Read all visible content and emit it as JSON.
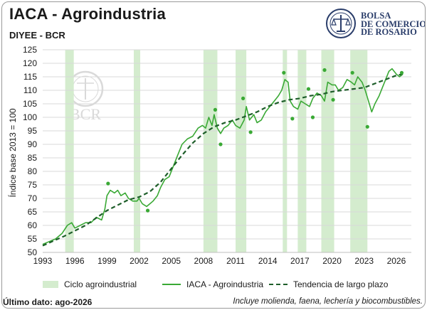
{
  "header": {
    "title": "IACA - Agroindustria",
    "subtitle": "DIYEE - BCR"
  },
  "logo": {
    "line1": "BOLSA",
    "line2": "DE COMERCIO",
    "line3": "DE ROSARIO",
    "color": "#2a3d6a",
    "icon": "bcr-seal-icon"
  },
  "watermark": {
    "text": "BCR"
  },
  "footer": {
    "last_data": "Último dato: ago-2026",
    "note": "Incluye molienda, faena, lechería y biocombustibles."
  },
  "colors": {
    "series": "#3aa935",
    "trend": "#1e5e2a",
    "band": "#d4ecce",
    "grid": "#d9d9d9"
  },
  "chart_data": {
    "type": "line",
    "title": "IACA - Agroindustria",
    "ylabel": "Índice base 2013 = 100",
    "xlabel": "",
    "ylim": [
      50,
      125
    ],
    "xlim": [
      1993,
      2027.4
    ],
    "xticks": [
      1993,
      1996,
      1999,
      2002,
      2005,
      2008,
      2011,
      2014,
      2017,
      2020,
      2023,
      2026
    ],
    "yticks": [
      50,
      55,
      60,
      65,
      70,
      75,
      80,
      85,
      90,
      95,
      100,
      105,
      110,
      115,
      120,
      125
    ],
    "grid": "horizontal",
    "legend": {
      "position": "bottom",
      "items": [
        "Ciclo agroindustrial",
        "IACA - Agroindustria",
        "Tendencia de largo plazo"
      ]
    },
    "bands": [
      [
        1995.1,
        1995.9
      ],
      [
        2001.5,
        2002.1
      ],
      [
        2008.0,
        2009.3
      ],
      [
        2011.0,
        2012.0
      ],
      [
        2015.4,
        2015.8
      ],
      [
        2016.8,
        2017.6
      ],
      [
        2019.0,
        2020.2
      ],
      [
        2021.7,
        2023.3
      ]
    ],
    "series": [
      {
        "name": "IACA - Agroindustria",
        "x": [
          1993.0,
          1993.6,
          1994.2,
          1994.8,
          1995.3,
          1995.7,
          1996.0,
          1996.5,
          1997.0,
          1997.5,
          1998.0,
          1998.5,
          1998.8,
          1999.0,
          1999.3,
          1999.7,
          2000.0,
          2000.3,
          2000.7,
          2001.0,
          2001.4,
          2001.8,
          2002.0,
          2002.3,
          2002.7,
          2003.0,
          2003.3,
          2003.7,
          2004.0,
          2004.4,
          2004.8,
          2005.2,
          2005.6,
          2006.0,
          2006.5,
          2007.0,
          2007.5,
          2007.9,
          2008.2,
          2008.5,
          2008.8,
          2009.0,
          2009.3,
          2009.6,
          2009.9,
          2010.3,
          2010.7,
          2011.0,
          2011.4,
          2011.8,
          2012.0,
          2012.3,
          2012.7,
          2013.0,
          2013.4,
          2013.8,
          2014.2,
          2014.6,
          2015.0,
          2015.3,
          2015.6,
          2015.9,
          2016.1,
          2016.4,
          2016.8,
          2017.1,
          2017.5,
          2017.9,
          2018.2,
          2018.6,
          2019.0,
          2019.3,
          2019.6,
          2020.0,
          2020.3,
          2020.6,
          2021.0,
          2021.4,
          2021.8,
          2022.1,
          2022.4,
          2022.8,
          2023.1,
          2023.4,
          2023.7,
          2024.0,
          2024.4,
          2024.7,
          2025.0,
          2025.3,
          2025.6,
          2026.0,
          2026.3,
          2026.6
        ],
        "values": [
          53,
          54,
          55,
          57,
          60,
          61,
          59,
          60,
          61,
          61,
          63,
          62,
          66,
          71,
          73,
          72,
          73,
          71,
          72,
          70,
          69,
          69,
          70,
          68,
          67,
          68,
          69,
          71,
          74,
          77,
          78,
          82,
          86,
          90,
          92,
          93,
          96,
          97,
          96,
          100,
          97,
          101,
          96,
          94,
          96,
          97,
          99,
          97,
          96,
          99,
          104,
          99,
          101,
          98,
          99,
          102,
          104,
          106,
          108,
          110,
          114,
          113,
          106,
          104,
          103,
          106,
          105,
          104,
          107,
          109,
          108,
          106,
          113,
          112,
          112,
          110,
          111,
          114,
          113,
          112,
          115,
          113,
          110,
          106,
          102,
          105,
          108,
          111,
          114,
          117,
          118,
          116,
          115,
          116
        ]
      },
      {
        "name": "Tendencia de largo plazo",
        "x": [
          1993,
          1995,
          1997,
          1999,
          2001,
          2002,
          2003,
          2004,
          2005,
          2006,
          2007,
          2008,
          2009,
          2010,
          2011,
          2012,
          2013,
          2014,
          2015,
          2016,
          2017,
          2018,
          2019,
          2020,
          2021,
          2022,
          2023,
          2024,
          2025,
          2026,
          2026.6
        ],
        "values": [
          52.5,
          56,
          60,
          65.5,
          69.5,
          70.5,
          72.5,
          76,
          81,
          86,
          90.5,
          94,
          96.5,
          98,
          99,
          100.5,
          102,
          104,
          105.5,
          106.5,
          107,
          108,
          108.5,
          109.5,
          110,
          110.5,
          111,
          112.5,
          114,
          115.5,
          116
        ]
      }
    ],
    "peaks": [
      {
        "x": 1999.1,
        "y": 75.5
      },
      {
        "x": 2002.8,
        "y": 65.5
      },
      {
        "x": 2009.1,
        "y": 102.8
      },
      {
        "x": 2009.6,
        "y": 90
      },
      {
        "x": 2011.7,
        "y": 107
      },
      {
        "x": 2012.4,
        "y": 94.5
      },
      {
        "x": 2015.5,
        "y": 116.5
      },
      {
        "x": 2016.3,
        "y": 99.5
      },
      {
        "x": 2017.8,
        "y": 110.5
      },
      {
        "x": 2018.2,
        "y": 100
      },
      {
        "x": 2019.3,
        "y": 117.5
      },
      {
        "x": 2020.1,
        "y": 106.5
      },
      {
        "x": 2021.9,
        "y": 116.5
      },
      {
        "x": 2023.3,
        "y": 96.5
      },
      {
        "x": 2026.5,
        "y": 116.5
      }
    ]
  }
}
